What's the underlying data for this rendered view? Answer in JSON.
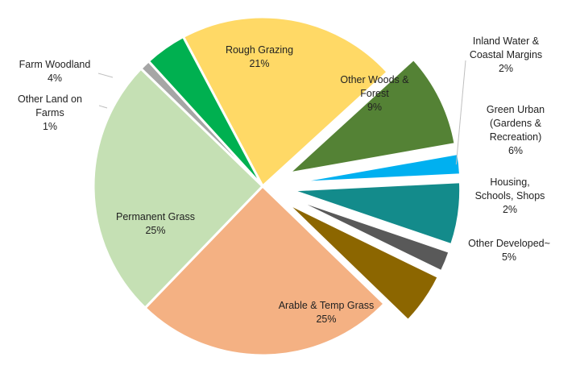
{
  "chart_data": {
    "type": "pie",
    "title": "",
    "legend": "none",
    "slices": [
      {
        "name": "Rough Grazing",
        "value": 21,
        "label": "21%",
        "color": "#ffd966",
        "exploded": false
      },
      {
        "name": "Other Woods & Forest",
        "value": 9,
        "label": "9%",
        "color": "#548235",
        "exploded": true
      },
      {
        "name": "Inland Water & Coastal Margins",
        "value": 2,
        "label": "2%",
        "color": "#00b0f0",
        "exploded": true
      },
      {
        "name": "Green Urban (Gardens & Recreation)",
        "value": 6,
        "label": "6%",
        "color": "#138b8b",
        "exploded": true
      },
      {
        "name": "Housing, Schools, Shops",
        "value": 2,
        "label": "2%",
        "color": "#595959",
        "exploded": true
      },
      {
        "name": "Other Developed",
        "value": 5,
        "label": "5%",
        "color": "#8c6600",
        "exploded": true
      },
      {
        "name": "Arable & Temp Grass",
        "value": 25,
        "label": "25%",
        "color": "#f4b183",
        "exploded": false
      },
      {
        "name": "Permanent Grass",
        "value": 25,
        "label": "25%",
        "color": "#c5e0b4",
        "exploded": false
      },
      {
        "name": "Other Land on Farms",
        "value": 1,
        "label": "1%",
        "color": "#a6a6a6",
        "exploded": false
      },
      {
        "name": "Farm Woodland",
        "value": 4,
        "label": "4%",
        "color": "#00b050",
        "exploded": false
      }
    ]
  }
}
